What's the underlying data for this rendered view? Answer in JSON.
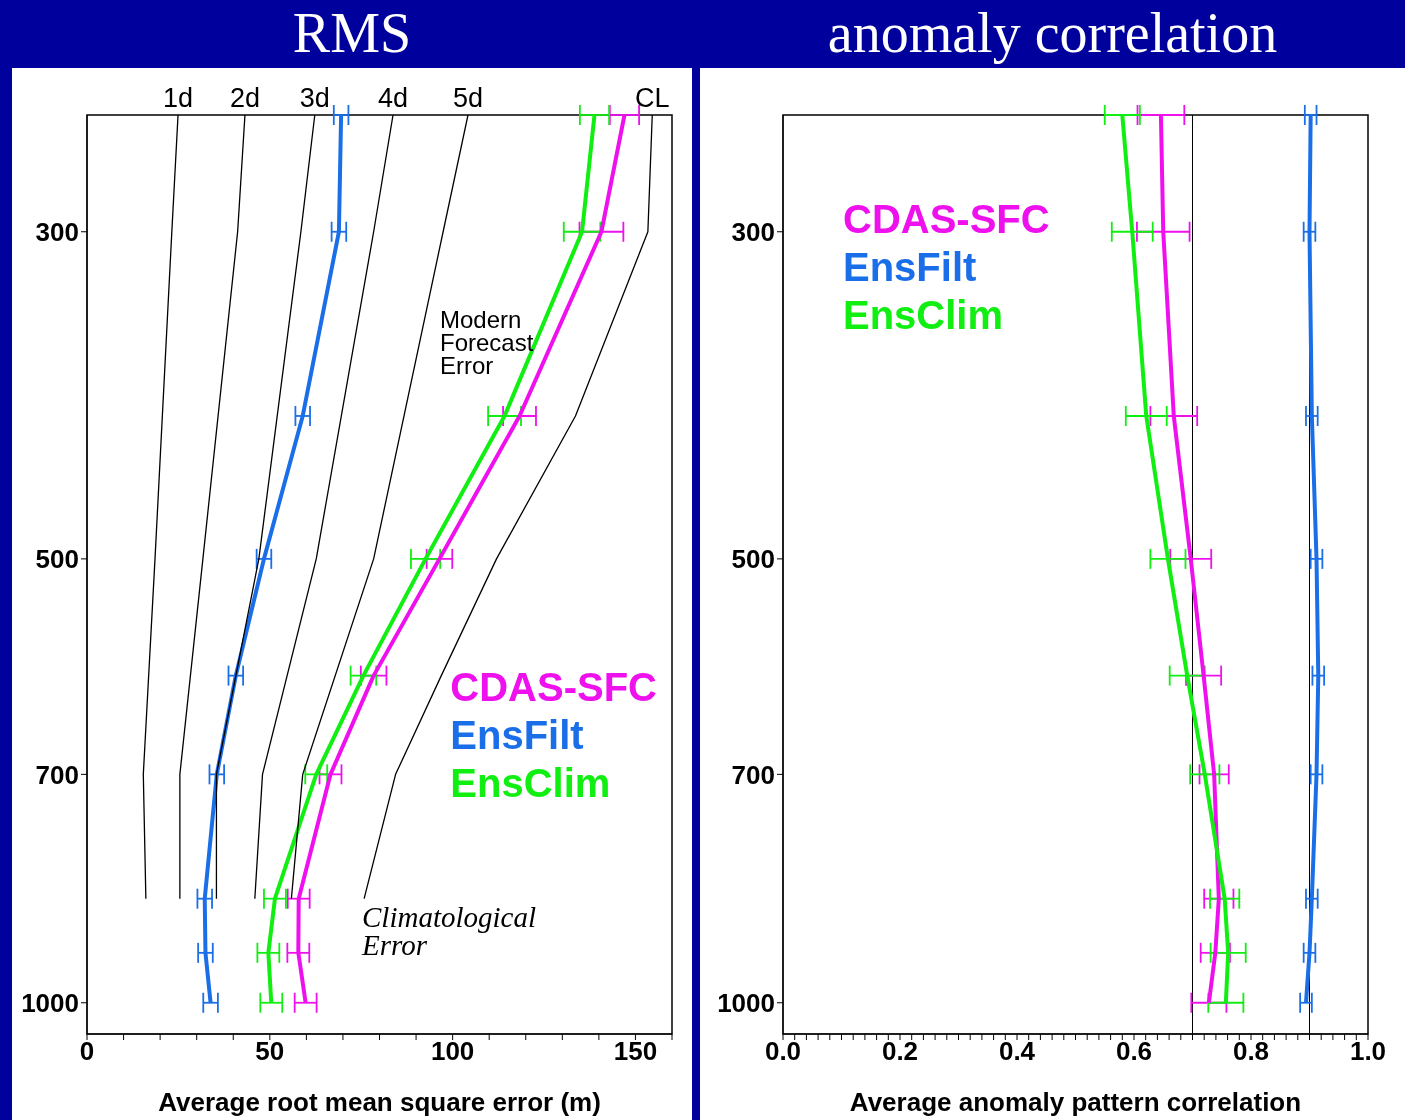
{
  "chart_data": [
    {
      "type": "line",
      "title": "RMS",
      "xlabel": "Average root mean square error (m)",
      "xlim": [
        0,
        160
      ],
      "xticks": [
        0,
        {
          "value": 10,
          "label": null
        },
        {
          "value": 20,
          "label": null
        },
        {
          "value": 30,
          "label": null
        },
        {
          "value": 40,
          "label": null
        },
        50,
        {
          "value": 60,
          "label": null
        },
        {
          "value": 70,
          "label": null
        },
        {
          "value": 80,
          "label": null
        },
        {
          "value": 90,
          "label": null
        },
        100,
        {
          "value": 110,
          "label": null
        },
        {
          "value": 120,
          "label": null
        },
        {
          "value": 130,
          "label": null
        },
        {
          "value": 140,
          "label": null
        },
        150,
        {
          "value": 160,
          "label": null
        }
      ],
      "ylim": [
        1050,
        250
      ],
      "yticks": [
        300,
        500,
        700,
        1000
      ],
      "log": "y",
      "marker": "none",
      "line_style": "solid",
      "legend": "right",
      "annotations": [
        "Modern Forecast Error",
        "Climatological Error"
      ],
      "series": [
        {
          "name": "1d",
          "color": "#000000",
          "x": [
            24.9,
            23.2,
            18.6,
            15.4,
            16.1
          ],
          "values": [
            250,
            300,
            500,
            700,
            850
          ]
        },
        {
          "name": "2d",
          "color": "#000000",
          "x": [
            43.2,
            41.2,
            31.7,
            25.4,
            25.4
          ],
          "values": [
            250,
            300,
            500,
            700,
            850
          ]
        },
        {
          "name": "3d",
          "color": "#000000",
          "x": [
            62.3,
            58.5,
            47,
            35.4,
            35.4
          ],
          "values": [
            250,
            300,
            500,
            700,
            850
          ]
        },
        {
          "name": "4d",
          "color": "#000000",
          "x": [
            83.7,
            78.4,
            62.7,
            48,
            45.9
          ],
          "values": [
            250,
            300,
            500,
            700,
            850
          ]
        },
        {
          "name": "5d",
          "color": "#000000",
          "x": [
            104.2,
            97.4,
            78.4,
            59,
            55.9
          ],
          "values": [
            250,
            300,
            500,
            700,
            850
          ]
        },
        {
          "name": "CL",
          "color": "#000000",
          "x": [
            154.6,
            153.4,
            133.6,
            112,
            96.9,
            84.4,
            75.8
          ],
          "values": [
            250,
            300,
            400,
            500,
            600,
            700,
            850
          ]
        },
        {
          "name": "CDAS-SFC",
          "color": "#ee11ee",
          "x": [
            147,
            140.7,
            118.3,
            96.4,
            78.4,
            66.6,
            57.9,
            57.8,
            59.8
          ],
          "values": [
            250,
            300,
            400,
            500,
            600,
            700,
            850,
            925,
            1000
          ],
          "xerrors": [
            4,
            6,
            4.5,
            3.5,
            3.5,
            3,
            3,
            3,
            3
          ]
        },
        {
          "name": "EnsFilt",
          "color": "#1a6fe8",
          "x": [
            69.5,
            68.9,
            59,
            48.4,
            40.7,
            35.5,
            32.2,
            32.4,
            33.8
          ],
          "values": [
            250,
            300,
            400,
            500,
            600,
            700,
            850,
            925,
            1000
          ],
          "xerrors": [
            2,
            2,
            2,
            2,
            2,
            2,
            2,
            2,
            2
          ]
        },
        {
          "name": "EnsClim",
          "color": "#11ee11",
          "x": [
            138.8,
            135.4,
            114.2,
            92.6,
            75.6,
            62.7,
            51.4,
            49.6,
            50.4
          ],
          "values": [
            250,
            300,
            400,
            500,
            600,
            700,
            850,
            925,
            1000
          ],
          "xerrors": [
            4,
            5,
            4.5,
            4,
            3.5,
            3,
            3,
            3,
            3
          ]
        }
      ]
    },
    {
      "type": "line",
      "title": "anomaly correlation",
      "xlabel": "Average anomaly pattern correlation",
      "xlim": [
        0,
        1
      ],
      "xticks": [
        {
          "value": 0,
          "label": "0.0"
        },
        {
          "value": 0.02,
          "label": null
        },
        {
          "value": 0.04,
          "label": null
        },
        {
          "value": 0.06,
          "label": null
        },
        {
          "value": 0.08,
          "label": null
        },
        {
          "value": 0.1,
          "label": null
        },
        {
          "value": 0.12,
          "label": null
        },
        {
          "value": 0.14,
          "label": null
        },
        {
          "value": 0.16,
          "label": null
        },
        {
          "value": 0.18,
          "label": null
        },
        {
          "value": 0.2,
          "label": "0.2"
        },
        {
          "value": 0.22,
          "label": null
        },
        {
          "value": 0.24,
          "label": null
        },
        {
          "value": 0.26,
          "label": null
        },
        {
          "value": 0.28,
          "label": null
        },
        {
          "value": 0.3,
          "label": null
        },
        {
          "value": 0.32,
          "label": null
        },
        {
          "value": 0.34,
          "label": null
        },
        {
          "value": 0.36,
          "label": null
        },
        {
          "value": 0.38,
          "label": null
        },
        {
          "value": 0.4,
          "label": "0.4"
        },
        {
          "value": 0.42,
          "label": null
        },
        {
          "value": 0.44,
          "label": null
        },
        {
          "value": 0.46,
          "label": null
        },
        {
          "value": 0.48,
          "label": null
        },
        {
          "value": 0.5,
          "label": null
        },
        {
          "value": 0.52,
          "label": null
        },
        {
          "value": 0.54,
          "label": null
        },
        {
          "value": 0.56,
          "label": null
        },
        {
          "value": 0.58,
          "label": null
        },
        {
          "value": 0.6,
          "label": "0.6"
        },
        {
          "value": 0.62,
          "label": null
        },
        {
          "value": 0.64,
          "label": null
        },
        {
          "value": 0.66,
          "label": null
        },
        {
          "value": 0.68,
          "label": null
        },
        {
          "value": 0.7,
          "label": null
        },
        {
          "value": 0.72,
          "label": null
        },
        {
          "value": 0.74,
          "label": null
        },
        {
          "value": 0.76,
          "label": null
        },
        {
          "value": 0.78,
          "label": null
        },
        {
          "value": 0.8,
          "label": "0.8"
        },
        {
          "value": 0.82,
          "label": null
        },
        {
          "value": 0.84,
          "label": null
        },
        {
          "value": 0.86,
          "label": null
        },
        {
          "value": 0.88,
          "label": null
        },
        {
          "value": 0.9,
          "label": null
        },
        {
          "value": 0.92,
          "label": null
        },
        {
          "value": 0.94,
          "label": null
        },
        {
          "value": 0.96,
          "label": null
        },
        {
          "value": 0.98,
          "label": null
        },
        {
          "value": 1,
          "label": "1.0"
        }
      ],
      "ylim": [
        1050,
        250
      ],
      "yticks": [
        300,
        500,
        700,
        1000
      ],
      "log": "y",
      "marker": "none",
      "line_style": "solid",
      "legend": "top left",
      "ref_lines": [
        {
          "axis": "x",
          "value": 0.7
        },
        {
          "axis": "x",
          "value": 0.9
        }
      ],
      "series": [
        {
          "name": "CDAS-SFC",
          "color": "#ee11ee",
          "x": [
            0.646,
            0.65,
            0.668,
            0.697,
            0.719,
            0.737,
            0.745,
            0.739,
            0.728
          ],
          "values": [
            250,
            300,
            400,
            500,
            600,
            700,
            850,
            925,
            1000
          ],
          "xerrors": [
            0.04,
            0.045,
            0.04,
            0.035,
            0.03,
            0.025,
            0.025,
            0.025,
            0.03
          ]
        },
        {
          "name": "EnsFilt",
          "color": "#1a6fe8",
          "x": [
            0.902,
            0.9,
            0.904,
            0.912,
            0.915,
            0.912,
            0.904,
            0.9,
            0.894
          ],
          "values": [
            250,
            300,
            400,
            500,
            600,
            700,
            850,
            925,
            1000
          ],
          "xerrors": [
            0.01,
            0.01,
            0.01,
            0.01,
            0.01,
            0.01,
            0.01,
            0.01,
            0.01
          ]
        },
        {
          "name": "EnsClim",
          "color": "#11ee11",
          "x": [
            0.58,
            0.597,
            0.621,
            0.658,
            0.691,
            0.721,
            0.755,
            0.761,
            0.757
          ],
          "values": [
            250,
            300,
            400,
            500,
            600,
            700,
            850,
            925,
            1000
          ],
          "xerrors": [
            0.03,
            0.035,
            0.035,
            0.03,
            0.03,
            0.025,
            0.025,
            0.03,
            0.03
          ]
        }
      ]
    }
  ]
}
